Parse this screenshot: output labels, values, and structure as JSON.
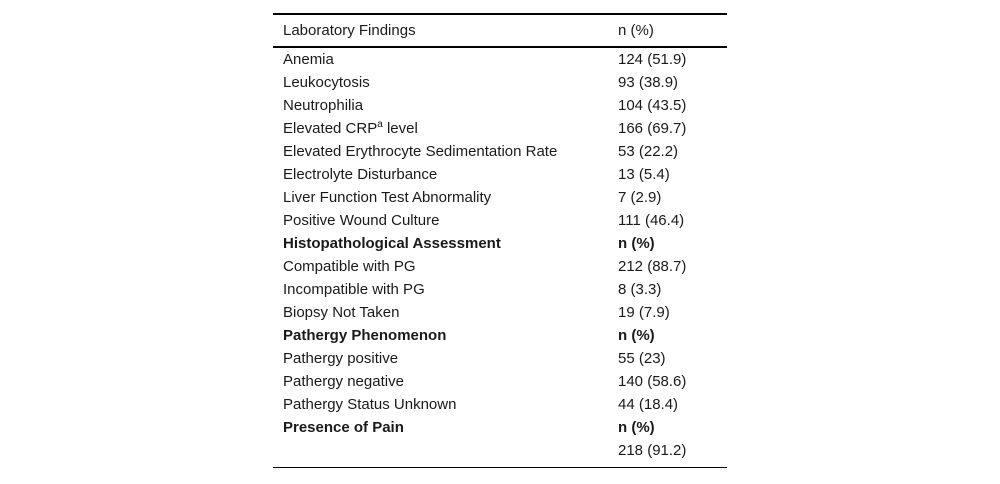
{
  "table": {
    "header": {
      "col1": "Laboratory Findings",
      "col2": "n (%)"
    },
    "rows": [
      {
        "label": "Anemia",
        "value": "124 (51.9)"
      },
      {
        "label": "Leukocytosis",
        "value": "93 (38.9)"
      },
      {
        "label": "Neutrophilia",
        "value": "104 (43.5)"
      },
      {
        "label_prefix": "Elevated CRP",
        "label_sup": "a",
        "label_suffix": " level",
        "value": "166 (69.7)"
      },
      {
        "label": "Elevated Erythrocyte Sedimentation Rate",
        "value": "53 (22.2)"
      },
      {
        "label": "Electrolyte Disturbance",
        "value": "13 (5.4)"
      },
      {
        "label": "Liver Function Test Abnormality",
        "value": "7 (2.9)"
      },
      {
        "label": "Positive Wound Culture",
        "value": "111 (46.4)"
      },
      {
        "label": "Histopathological Assessment",
        "value": "n (%)",
        "section": true
      },
      {
        "label": "Compatible with PG",
        "value": "212 (88.7)"
      },
      {
        "label": "Incompatible with PG",
        "value": "8 (3.3)"
      },
      {
        "label": "Biopsy Not Taken",
        "value": "19 (7.9)"
      },
      {
        "label": "Pathergy Phenomenon",
        "value": "n (%)",
        "section": true
      },
      {
        "label": "Pathergy positive",
        "value": "55 (23)"
      },
      {
        "label": "Pathergy negative",
        "value": "140 (58.6)"
      },
      {
        "label": "Pathergy Status Unknown",
        "value": "44 (18.4)"
      },
      {
        "label": "Presence of Pain",
        "value": "n (%)",
        "section": true
      },
      {
        "label": "",
        "value": "218 (91.2)"
      }
    ],
    "colors": {
      "text": "#1a1a1a",
      "rule": "#000000",
      "background": "#ffffff"
    }
  }
}
